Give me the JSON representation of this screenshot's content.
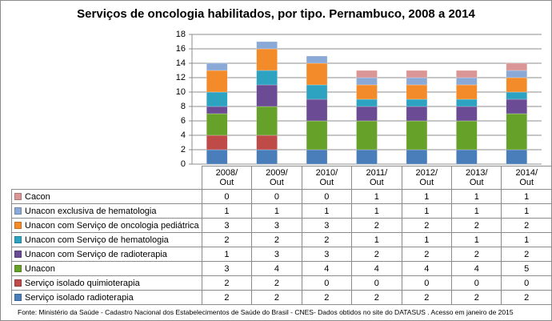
{
  "chart_data": {
    "type": "stacked-bar",
    "title": "Serviços de oncologia habilitados, por tipo. Pernambuco, 2008 a 2014",
    "categories": [
      "2008/ Out",
      "2009/ Out",
      "2010/ Out",
      "2011/ Out",
      "2012/ Out",
      "2013/ Out",
      "2014/ Out"
    ],
    "series": [
      {
        "name": "Serviço isolado radioterapia",
        "color": "#4a7ebb",
        "values": [
          2,
          2,
          2,
          2,
          2,
          2,
          2
        ]
      },
      {
        "name": "Serviço isolado quimioterapia",
        "color": "#be4b48",
        "values": [
          2,
          2,
          0,
          0,
          0,
          0,
          0
        ]
      },
      {
        "name": "Unacon",
        "color": "#66a12a",
        "values": [
          3,
          4,
          4,
          4,
          4,
          4,
          5
        ]
      },
      {
        "name": "Unacon com Serviço de radioterapia",
        "color": "#6b4c94",
        "values": [
          1,
          3,
          3,
          2,
          2,
          2,
          2
        ]
      },
      {
        "name": "Unacon com Serviço de hematologia",
        "color": "#2ea3c1",
        "values": [
          2,
          2,
          2,
          1,
          1,
          1,
          1
        ]
      },
      {
        "name": "Unacon com Serviço de oncologia pediátrica",
        "color": "#f38b2a",
        "values": [
          3,
          3,
          3,
          2,
          2,
          2,
          2
        ]
      },
      {
        "name": "Unacon exclusiva de hematologia",
        "color": "#8ba9d6",
        "values": [
          1,
          1,
          1,
          1,
          1,
          1,
          1
        ]
      },
      {
        "name": "Cacon",
        "color": "#d99694",
        "values": [
          0,
          0,
          0,
          1,
          1,
          1,
          1
        ]
      }
    ],
    "ylim": [
      0,
      18
    ],
    "yticks": [
      0,
      2,
      4,
      6,
      8,
      10,
      12,
      14,
      16,
      18
    ],
    "grid": true,
    "source": "Fonte: Ministério da Saúde - Cadastro Nacional dos Estabelecimentos de Saúde do Brasil - CNES- Dados obtidos no site do DATASUS . Acesso em janeiro de 2015"
  }
}
